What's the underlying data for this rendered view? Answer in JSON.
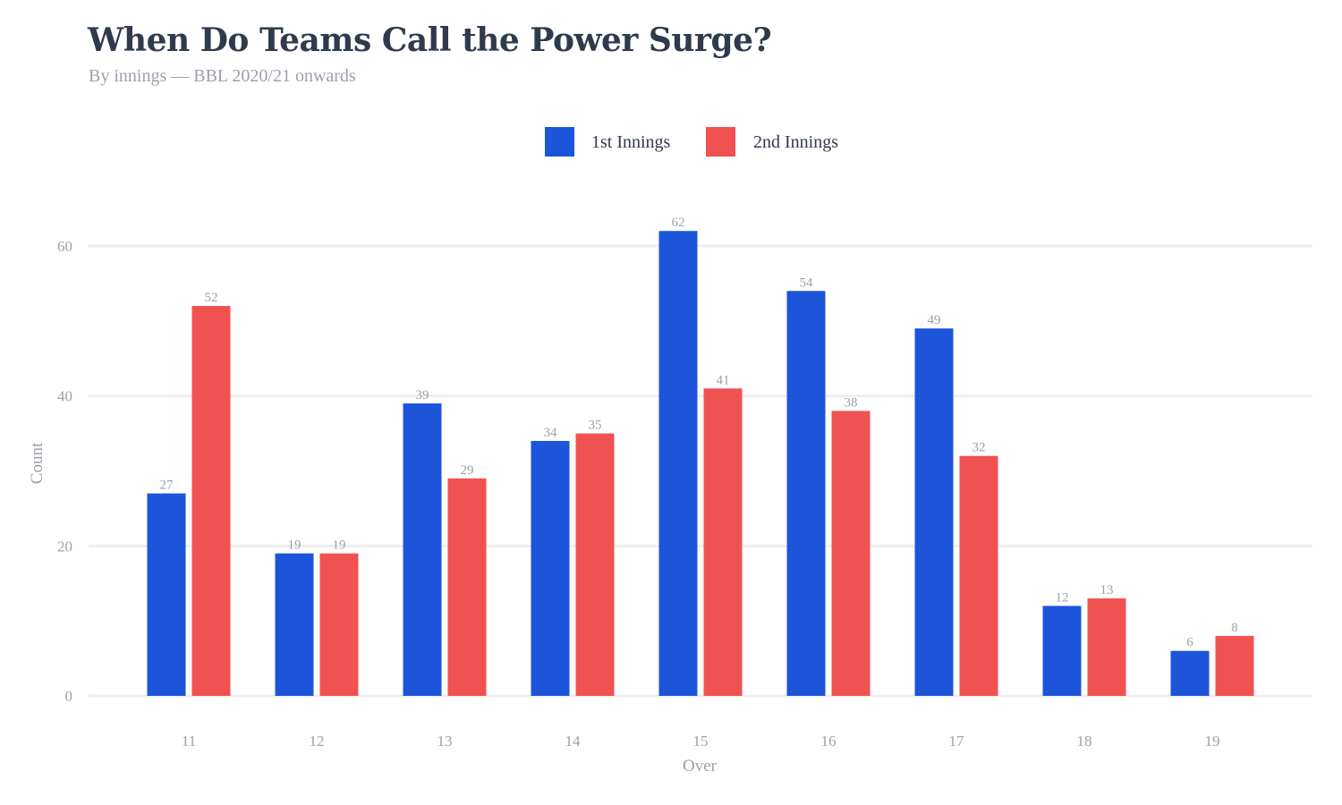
{
  "chart_data": {
    "type": "bar",
    "title": "When Do Teams Call the Power Surge?",
    "subtitle": "By innings — BBL 2020/21 onwards",
    "xlabel": "Over",
    "ylabel": "Count",
    "categories": [
      "11",
      "12",
      "13",
      "14",
      "15",
      "16",
      "17",
      "18",
      "19"
    ],
    "series": [
      {
        "name": "1st Innings",
        "color": "#1c55d9",
        "values": [
          27,
          19,
          39,
          34,
          62,
          54,
          49,
          12,
          6
        ]
      },
      {
        "name": "2nd Innings",
        "color": "#f05252",
        "values": [
          52,
          19,
          29,
          35,
          41,
          38,
          32,
          13,
          8
        ]
      }
    ],
    "ylim": [
      0,
      60
    ],
    "yticks": [
      0,
      20,
      40,
      60
    ],
    "grid": true,
    "legend": "top-center",
    "data_labels": true
  }
}
